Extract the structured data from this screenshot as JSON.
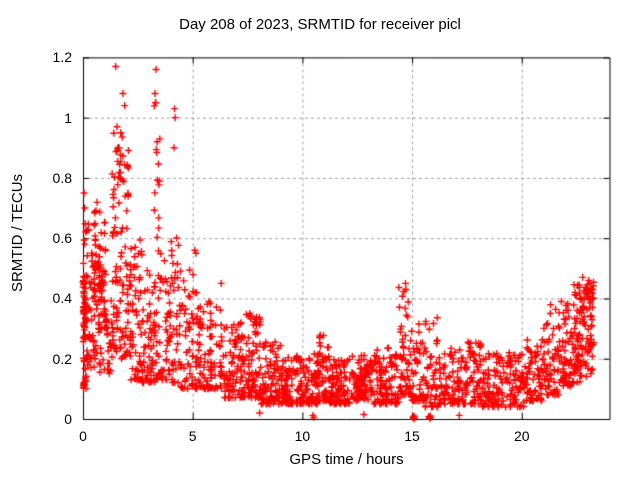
{
  "chart_data": {
    "type": "scatter",
    "title": "Day 208 of 2023, SRMTID for receiver picl",
    "xlabel": "GPS time / hours",
    "ylabel": "SRMTID / TECUs",
    "xlim": [
      0,
      24
    ],
    "ylim": [
      0,
      1.2
    ],
    "xticks": [
      0,
      5,
      10,
      15,
      20
    ],
    "xtick_labels": [
      "0",
      "5",
      "10",
      "15",
      "20"
    ],
    "yticks": [
      0,
      0.2,
      0.4,
      0.6,
      0.8,
      1,
      1.2
    ],
    "ytick_labels": [
      "0",
      "0.2",
      "0.4",
      "0.6",
      "0.8",
      "1",
      "1.2"
    ],
    "legend": "none",
    "grid": {
      "on": true,
      "style": "dashed",
      "color": "#a0a0a0"
    },
    "axis_color": "#000000",
    "background": "#ffffff",
    "marker": {
      "symbol": "plus",
      "color": "#ff0000",
      "size": 7,
      "stroke": 1.4
    },
    "distribution_note": "density model estimated from pixels: bands are [x_start_hr, x_end_hr, n_points, y_low_TECU, y_high_TECU, skew_power]",
    "seed": 20230727,
    "clump": {
      "fraction": 0.4,
      "columns": 5,
      "jitter": 0.12
    },
    "bands": [
      [
        0.0,
        0.18,
        60,
        0.1,
        0.47,
        1.1
      ],
      [
        0.02,
        0.3,
        14,
        0.47,
        0.66,
        1.0
      ],
      [
        0.18,
        0.7,
        45,
        0.17,
        0.6,
        1.2
      ],
      [
        0.5,
        1.05,
        55,
        0.3,
        0.72,
        1.0
      ],
      [
        0.7,
        1.3,
        45,
        0.15,
        0.45,
        1.3
      ],
      [
        1.3,
        2.1,
        95,
        0.2,
        0.97,
        1.6
      ],
      [
        1.5,
        1.95,
        12,
        0.72,
        0.96,
        1.0
      ],
      [
        2.1,
        2.7,
        65,
        0.13,
        0.6,
        1.8
      ],
      [
        2.7,
        3.3,
        60,
        0.12,
        0.5,
        1.8
      ],
      [
        3.25,
        3.5,
        16,
        0.55,
        1.1,
        1.0
      ],
      [
        3.3,
        4.0,
        55,
        0.13,
        0.55,
        1.8
      ],
      [
        4.0,
        4.45,
        42,
        0.12,
        0.62,
        1.8
      ],
      [
        4.45,
        5.2,
        60,
        0.1,
        0.5,
        1.9
      ],
      [
        5.2,
        6.4,
        95,
        0.1,
        0.4,
        1.8
      ],
      [
        6.4,
        7.3,
        80,
        0.07,
        0.32,
        1.7
      ],
      [
        7.3,
        8.1,
        85,
        0.07,
        0.35,
        1.8
      ],
      [
        8.1,
        9.0,
        85,
        0.05,
        0.26,
        1.8
      ],
      [
        9.0,
        10.0,
        90,
        0.05,
        0.21,
        1.7
      ],
      [
        10.0,
        10.75,
        70,
        0.05,
        0.22,
        1.7
      ],
      [
        10.75,
        11.2,
        45,
        0.06,
        0.28,
        1.5
      ],
      [
        11.2,
        12.2,
        95,
        0.05,
        0.2,
        1.7
      ],
      [
        12.2,
        13.2,
        95,
        0.06,
        0.22,
        1.7
      ],
      [
        13.2,
        14.4,
        105,
        0.05,
        0.24,
        1.7
      ],
      [
        14.4,
        14.95,
        55,
        0.08,
        0.46,
        2.2
      ],
      [
        14.95,
        15.55,
        45,
        0.06,
        0.38,
        2.0
      ],
      [
        15.55,
        16.2,
        50,
        0.04,
        0.34,
        2.0
      ],
      [
        16.2,
        17.2,
        75,
        0.05,
        0.24,
        1.8
      ],
      [
        17.2,
        18.2,
        80,
        0.05,
        0.26,
        1.8
      ],
      [
        18.2,
        19.2,
        75,
        0.04,
        0.22,
        1.8
      ],
      [
        19.2,
        20.2,
        70,
        0.04,
        0.24,
        1.8
      ],
      [
        20.2,
        21.0,
        65,
        0.06,
        0.28,
        1.8
      ],
      [
        21.0,
        21.7,
        55,
        0.08,
        0.38,
        1.8
      ],
      [
        21.7,
        22.35,
        62,
        0.1,
        0.4,
        1.5
      ],
      [
        22.35,
        23.0,
        85,
        0.12,
        0.45,
        1.2
      ],
      [
        23.0,
        23.3,
        40,
        0.15,
        0.46,
        1.0
      ]
    ],
    "outliers": [
      [
        1.49,
        1.17
      ],
      [
        3.33,
        1.16
      ],
      [
        1.82,
        1.08
      ],
      [
        1.9,
        1.04
      ],
      [
        3.28,
        1.08
      ],
      [
        3.3,
        1.05
      ],
      [
        4.17,
        1.03
      ],
      [
        4.2,
        1.0
      ],
      [
        4.15,
        0.9
      ],
      [
        1.55,
        0.97
      ],
      [
        1.72,
        0.95
      ],
      [
        0.05,
        0.75
      ],
      [
        0.08,
        0.7
      ],
      [
        5.1,
        0.56
      ],
      [
        5.15,
        0.55
      ],
      [
        6.3,
        0.45
      ],
      [
        7.6,
        0.35
      ],
      [
        8.05,
        0.33
      ],
      [
        14.7,
        0.45
      ],
      [
        14.72,
        0.43
      ],
      [
        21.3,
        0.35
      ],
      [
        22.78,
        0.47
      ],
      [
        23.05,
        0.46
      ],
      [
        12.8,
        0.015
      ],
      [
        17.15,
        0.012
      ],
      [
        8.05,
        0.02
      ]
    ],
    "zero_points": [
      [
        10.48,
        0.012
      ],
      [
        10.52,
        0.005
      ],
      [
        15.05,
        0.006
      ],
      [
        15.09,
        0.01
      ],
      [
        15.12,
        0.003
      ],
      [
        15.07,
        0.001
      ],
      [
        15.76,
        0.008
      ],
      [
        15.8,
        0.004
      ],
      [
        15.84,
        0.01
      ],
      [
        15.82,
        0.002
      ]
    ]
  }
}
